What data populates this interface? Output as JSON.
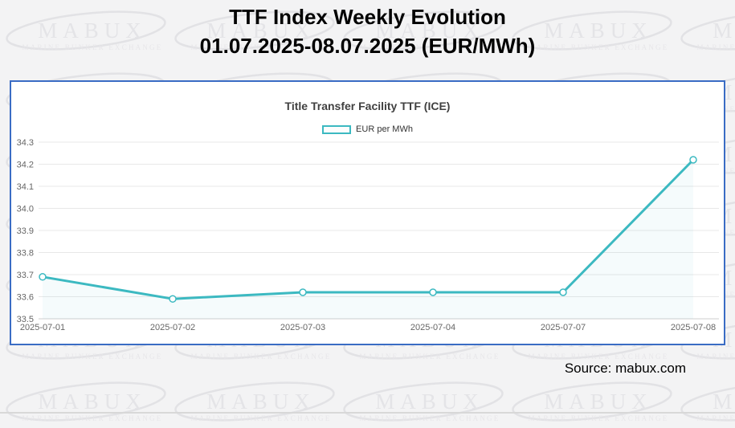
{
  "page": {
    "title_line1": "TTF Index Weekly Evolution",
    "title_line2": "01.07.2025-08.07.2025 (EUR/MWh)",
    "source": "Source: mabux.com"
  },
  "watermark": {
    "brand": "MABUX",
    "tagline": "MARINE BUNKER EXCHANGE"
  },
  "colors": {
    "accent": "#3cb9c1",
    "panel_border": "#3a6cc4",
    "area_fill": "rgba(60,185,193,0.05)",
    "gridline": "#e8e8e8",
    "axis_line": "#cfcfcf",
    "tick_label": "#666666"
  },
  "chart_data": {
    "type": "line",
    "title": "Title Transfer Facility TTF (ICE)",
    "legend": "EUR per MWh",
    "legend_position": "top-center",
    "categories": [
      "2025-07-01",
      "2025-07-02",
      "2025-07-03",
      "2025-07-04",
      "2025-07-07",
      "2025-07-08"
    ],
    "series": [
      {
        "name": "EUR per MWh",
        "values": [
          33.69,
          33.59,
          33.62,
          33.62,
          33.62,
          34.22
        ]
      }
    ],
    "ylim": [
      33.5,
      34.3
    ],
    "ytick_step": 0.1,
    "yticks": [
      "34.3",
      "34.2",
      "34.1",
      "34.0",
      "33.9",
      "33.8",
      "33.7",
      "33.6",
      "33.5"
    ],
    "grid": "horizontal-only",
    "markers": "hollow-circle"
  }
}
